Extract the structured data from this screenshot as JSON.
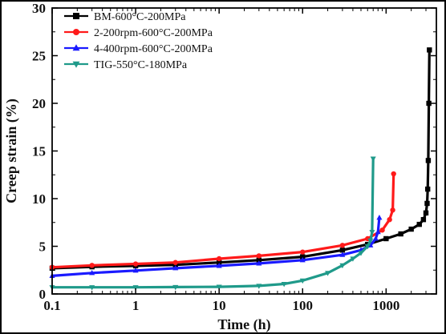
{
  "chart_data": {
    "type": "line",
    "xlabel": "Time (h)",
    "ylabel": "Creep strain (%)",
    "xscale": "log",
    "xlim": [
      0.1,
      4000
    ],
    "ylim": [
      0,
      30
    ],
    "xticks": [
      "0.1",
      "1",
      "10",
      "100",
      "1000"
    ],
    "xtick_values": [
      0.1,
      1,
      10,
      100,
      1000
    ],
    "yticks": [
      "0",
      "5",
      "10",
      "15",
      "20",
      "25",
      "30"
    ],
    "ytick_values": [
      0,
      5,
      10,
      15,
      20,
      25,
      30
    ],
    "legend_position": "top-left",
    "series": [
      {
        "name": "BM-600°C-200MPa",
        "color": "#000000",
        "marker": "square",
        "x": [
          0.1,
          0.3,
          1,
          3,
          10,
          30,
          100,
          300,
          600,
          1000,
          1500,
          2000,
          2500,
          2800,
          3000,
          3100,
          3150,
          3200,
          3250,
          3300
        ],
        "y": [
          2.7,
          2.85,
          2.95,
          3.05,
          3.3,
          3.55,
          3.9,
          4.6,
          5.2,
          5.8,
          6.3,
          6.8,
          7.3,
          7.8,
          8.5,
          9.5,
          11.0,
          14.0,
          20.0,
          25.6
        ]
      },
      {
        "name": "2-200rpm-600°C-200MPa",
        "color": "#ff1a1a",
        "marker": "circle",
        "x": [
          0.1,
          0.3,
          1,
          3,
          10,
          30,
          100,
          300,
          600,
          900,
          1100,
          1200,
          1230
        ],
        "y": [
          2.8,
          3.0,
          3.15,
          3.3,
          3.7,
          4.0,
          4.4,
          5.1,
          5.8,
          6.7,
          7.8,
          8.8,
          12.6
        ]
      },
      {
        "name": "4-400rpm-600°C-200MPa",
        "color": "#1a1aff",
        "marker": "triangle-up",
        "x": [
          0.1,
          0.3,
          1,
          3,
          10,
          30,
          100,
          300,
          500,
          650,
          750,
          800,
          830
        ],
        "y": [
          1.9,
          2.2,
          2.45,
          2.7,
          2.95,
          3.2,
          3.55,
          4.1,
          4.6,
          5.1,
          5.8,
          6.5,
          8.0
        ]
      },
      {
        "name": "TIG-550°C-180MPa",
        "color": "#1f9a8a",
        "marker": "triangle-down",
        "x": [
          0.1,
          0.3,
          1,
          3,
          10,
          30,
          60,
          100,
          200,
          300,
          400,
          500,
          600,
          650,
          680,
          700
        ],
        "y": [
          0.7,
          0.7,
          0.7,
          0.72,
          0.75,
          0.85,
          1.05,
          1.4,
          2.2,
          3.0,
          3.7,
          4.3,
          5.0,
          5.6,
          6.5,
          14.2
        ]
      }
    ]
  }
}
